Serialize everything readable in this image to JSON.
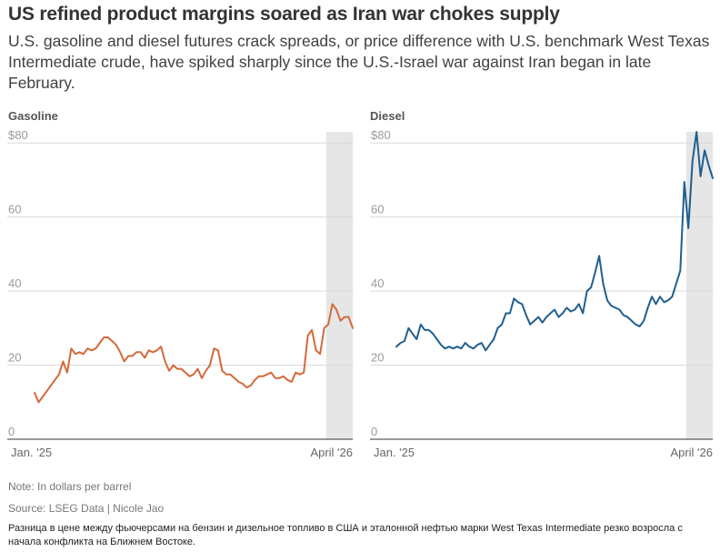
{
  "headline": "US refined product margins soared as Iran war chokes supply",
  "dek": "U.S. gasoline and diesel futures crack spreads, or price difference with U.S. benchmark West Texas Intermediate crude, have spiked sharply since the U.S.-Israel war against Iran began in late February.",
  "footer": {
    "note": "Note: In dollars per barrel",
    "source": "Source: LSEG Data | Nicole Jao",
    "translation": "Разница в цене между фьючерсами на бензин и дизельное топливо в США и эталонной нефтью марки West Texas Intermediate резко возросла с начала конфликта на Ближнем Востоке."
  },
  "colors": {
    "gasoline": "#d4693b",
    "diesel": "#1f5f8f",
    "shade": "#e6e6e6",
    "grid": "#d9d9d9"
  },
  "chart_data": [
    {
      "type": "line",
      "title": "Gasoline",
      "ylabel": "In dollars per barrel",
      "ylim": [
        0,
        83
      ],
      "yticks": [
        0,
        20,
        40,
        60,
        80
      ],
      "ytick_labels": [
        "0",
        "20",
        "40",
        "60",
        "$80"
      ],
      "xtick_labels": [
        "Jan. '25",
        "April '26"
      ],
      "x_range": [
        0,
        15.6
      ],
      "shaded_x": [
        14.3,
        15.6
      ],
      "x": [
        0,
        0.2,
        0.4,
        0.6,
        0.8,
        1.0,
        1.2,
        1.4,
        1.6,
        1.8,
        2.0,
        2.2,
        2.4,
        2.6,
        2.8,
        3.0,
        3.2,
        3.4,
        3.6,
        3.8,
        4.0,
        4.2,
        4.4,
        4.6,
        4.8,
        5.0,
        5.2,
        5.4,
        5.6,
        5.8,
        6.0,
        6.2,
        6.4,
        6.6,
        6.8,
        7.0,
        7.2,
        7.4,
        7.6,
        7.8,
        8.0,
        8.2,
        8.4,
        8.6,
        8.8,
        9.0,
        9.2,
        9.4,
        9.6,
        9.8,
        10.0,
        10.2,
        10.4,
        10.6,
        10.8,
        11.0,
        11.2,
        11.4,
        11.6,
        11.8,
        12.0,
        12.2,
        12.4,
        12.6,
        12.8,
        13.0,
        13.2,
        13.4,
        13.6,
        13.8,
        14.0,
        14.2,
        14.4,
        14.6,
        14.8,
        15.0,
        15.2,
        15.4,
        15.6
      ],
      "values": [
        12.5,
        10,
        11.5,
        13,
        14.5,
        16,
        17.5,
        21,
        18,
        24.5,
        23,
        23.5,
        23,
        24.5,
        24,
        24.5,
        26,
        27.5,
        27.5,
        26.5,
        25.5,
        23.5,
        21,
        22.5,
        22.5,
        23.5,
        23.5,
        22,
        24,
        23.5,
        24,
        25,
        21,
        18.5,
        20,
        19,
        19,
        18,
        17,
        17.5,
        19,
        16.5,
        18.5,
        20,
        24.5,
        24,
        18.5,
        17.5,
        17.5,
        16.5,
        15.5,
        15,
        14,
        14.5,
        16,
        17,
        17,
        17.5,
        18,
        16.5,
        16.5,
        17,
        16,
        15.5,
        18,
        17.5,
        18,
        28,
        29.5,
        24,
        23,
        30,
        31,
        36.5,
        35,
        32,
        33,
        33,
        30
      ]
    },
    {
      "type": "line",
      "title": "Diesel",
      "ylabel": "In dollars per barrel",
      "ylim": [
        0,
        83
      ],
      "yticks": [
        0,
        20,
        40,
        60,
        80
      ],
      "ytick_labels": [
        "0",
        "20",
        "40",
        "60",
        "$80"
      ],
      "xtick_labels": [
        "Jan. '25",
        "April '26"
      ],
      "x_range": [
        0,
        15.6
      ],
      "shaded_x": [
        14.3,
        15.6
      ],
      "x": [
        0,
        0.2,
        0.4,
        0.6,
        0.8,
        1.0,
        1.2,
        1.4,
        1.6,
        1.8,
        2.0,
        2.2,
        2.4,
        2.6,
        2.8,
        3.0,
        3.2,
        3.4,
        3.6,
        3.8,
        4.0,
        4.2,
        4.4,
        4.6,
        4.8,
        5.0,
        5.2,
        5.4,
        5.6,
        5.8,
        6.0,
        6.2,
        6.4,
        6.6,
        6.8,
        7.0,
        7.2,
        7.4,
        7.6,
        7.8,
        8.0,
        8.2,
        8.4,
        8.6,
        8.8,
        9.0,
        9.2,
        9.4,
        9.6,
        9.8,
        10.0,
        10.2,
        10.4,
        10.6,
        10.8,
        11.0,
        11.2,
        11.4,
        11.6,
        11.8,
        12.0,
        12.2,
        12.4,
        12.6,
        12.8,
        13.0,
        13.2,
        13.4,
        13.6,
        13.8,
        14.0,
        14.2,
        14.4,
        14.6,
        14.8,
        15.0,
        15.2,
        15.4,
        15.6
      ],
      "values": [
        25,
        26,
        26.5,
        30,
        28.5,
        27,
        31,
        29.5,
        29.5,
        28.5,
        27,
        25.5,
        24.5,
        25,
        24.5,
        25,
        24.5,
        26,
        25,
        24.5,
        25.5,
        26,
        24,
        25.5,
        27,
        30,
        31,
        34,
        34,
        38,
        37,
        36.5,
        33.5,
        31,
        32,
        33,
        31.5,
        33,
        34,
        35,
        33,
        34,
        35.5,
        34.5,
        35,
        36.5,
        34,
        40,
        41,
        45,
        49.5,
        42,
        37.5,
        36,
        35.5,
        35,
        33.5,
        33,
        32,
        31,
        30.5,
        32,
        35.5,
        38.5,
        36.5,
        38.5,
        37,
        37.5,
        38.5,
        42,
        45.5,
        69.5,
        57,
        75,
        83,
        71,
        78,
        74,
        70.5
      ]
    }
  ]
}
